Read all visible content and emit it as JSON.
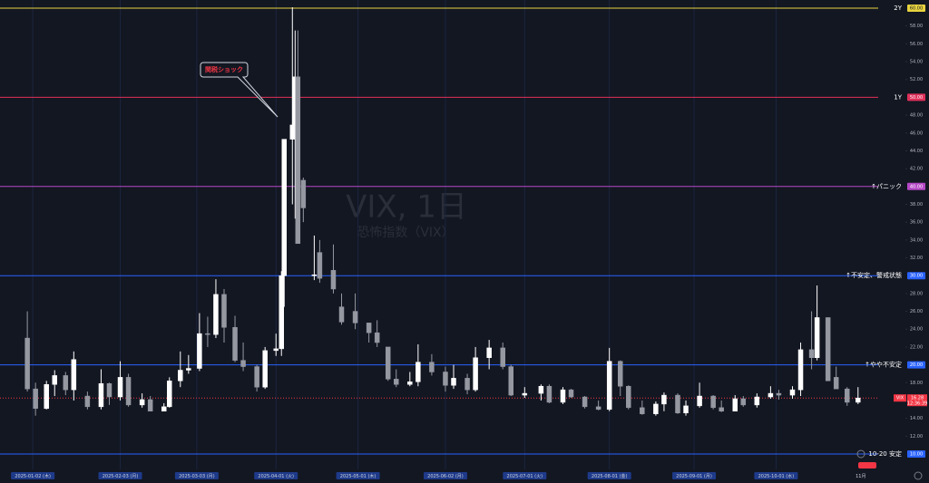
{
  "chart_data": {
    "type": "candlestick",
    "watermark": "VIX, 1日",
    "subtitle": "恐怖指数（VIX）",
    "annotation": "関税ショック",
    "up_color": "#ffffff",
    "down_color": "#9598a1",
    "xlim": [
      "2024-12-21",
      "2025-11-18"
    ],
    "ylim": [
      10,
      60
    ],
    "xticks": [
      {
        "value": "2025-01-02",
        "label": "2025-01-02 (木)"
      },
      {
        "value": "2025-02-03",
        "label": "2025-02-03 (月)"
      },
      {
        "value": "2025-03-03",
        "label": "2025-03-03 (月)"
      },
      {
        "value": "2025-04-01",
        "label": "2025-04-01 (火)"
      },
      {
        "value": "2025-05-01",
        "label": "2025-05-01 (木)"
      },
      {
        "value": "2025-06-02",
        "label": "2025-06-02 (月)"
      },
      {
        "value": "2025-07-01",
        "label": "2025-07-01 (火)"
      },
      {
        "value": "2025-08-01",
        "label": "2025-08-01 (金)"
      },
      {
        "value": "2025-09-01",
        "label": "2025-09-01 (月)"
      },
      {
        "value": "2025-10-01",
        "label": "2025-10-01 (水)"
      },
      {
        "value": "2025-11-01",
        "label": "11月"
      }
    ],
    "yticks": [
      {
        "value": 12,
        "label": "12.00"
      },
      {
        "value": 14,
        "label": "14.00"
      },
      {
        "value": 16,
        "label": "16.00"
      },
      {
        "value": 18,
        "label": "18.00"
      },
      {
        "value": 22,
        "label": "22.00"
      },
      {
        "value": 24,
        "label": "24.00"
      },
      {
        "value": 26,
        "label": "26.00"
      },
      {
        "value": 28,
        "label": "28.00"
      },
      {
        "value": 32,
        "label": "32.00"
      },
      {
        "value": 34,
        "label": "34.00"
      },
      {
        "value": 36,
        "label": "36.00"
      },
      {
        "value": 38,
        "label": "38.00"
      },
      {
        "value": 42,
        "label": "42.00"
      },
      {
        "value": 44,
        "label": "44.00"
      },
      {
        "value": 46,
        "label": "46.00"
      },
      {
        "value": 48,
        "label": "48.00"
      },
      {
        "value": 52,
        "label": "52.00"
      },
      {
        "value": 54,
        "label": "54.00"
      },
      {
        "value": 56,
        "label": "56.00"
      },
      {
        "value": 58,
        "label": "58.00"
      }
    ],
    "levels": [
      {
        "name": "2Y",
        "value": 60,
        "label": "60.00",
        "color": "#e8d33f"
      },
      {
        "name": "1Y",
        "value": 50,
        "label": "50.00",
        "color": "#e0305a"
      },
      {
        "name": "↑パニック",
        "value": 40,
        "label": "40.00",
        "color": "#b548c6"
      },
      {
        "name": "↑不安定、警戒状態",
        "value": 30,
        "label": "30.00",
        "color": "#2962ff"
      },
      {
        "name": "↑やや不安定",
        "value": 20,
        "label": "20.00",
        "color": "#2962ff"
      },
      {
        "name": "10-20 安定",
        "value": 10,
        "label": "10.00",
        "color": "#2962ff"
      }
    ],
    "last_price": {
      "symbol": "VIX",
      "value": 16.28,
      "countdown": "12:36:39",
      "color": "#f23645"
    },
    "x": [
      "2024-12-31",
      "2025-01-03",
      "2025-01-07",
      "2025-01-10",
      "2025-01-14",
      "2025-01-17",
      "2025-01-22",
      "2025-01-27",
      "2025-01-30",
      "2025-02-03",
      "2025-02-06",
      "2025-02-11",
      "2025-02-14",
      "2025-02-19",
      "2025-02-21",
      "2025-02-25",
      "2025-02-28",
      "2025-03-04",
      "2025-03-07",
      "2025-03-10",
      "2025-03-13",
      "2025-03-17",
      "2025-03-20",
      "2025-03-25",
      "2025-03-28",
      "2025-04-01",
      "2025-04-03",
      "2025-04-04",
      "2025-04-07",
      "2025-04-08",
      "2025-04-09",
      "2025-04-11",
      "2025-04-15",
      "2025-04-17",
      "2025-04-22",
      "2025-04-25",
      "2025-04-30",
      "2025-05-05",
      "2025-05-08",
      "2025-05-12",
      "2025-05-15",
      "2025-05-20",
      "2025-05-23",
      "2025-05-28",
      "2025-06-02",
      "2025-06-05",
      "2025-06-10",
      "2025-06-13",
      "2025-06-18",
      "2025-06-23",
      "2025-06-26",
      "2025-07-01",
      "2025-07-07",
      "2025-07-10",
      "2025-07-15",
      "2025-07-18",
      "2025-07-23",
      "2025-07-28",
      "2025-08-01",
      "2025-08-05",
      "2025-08-08",
      "2025-08-13",
      "2025-08-18",
      "2025-08-21",
      "2025-08-26",
      "2025-08-29",
      "2025-09-03",
      "2025-09-08",
      "2025-09-11",
      "2025-09-16",
      "2025-09-19",
      "2025-09-24",
      "2025-09-29",
      "2025-10-02",
      "2025-10-07",
      "2025-10-10",
      "2025-10-14",
      "2025-10-16",
      "2025-10-20",
      "2025-10-23",
      "2025-10-27",
      "2025-10-31"
    ],
    "open": [
      23,
      17.3,
      15.1,
      17.8,
      18.8,
      17.2,
      16.5,
      15.3,
      17.9,
      16.4,
      18.6,
      15.5,
      16.1,
      14.8,
      15.3,
      18.2,
      19.4,
      19.6,
      23.5,
      23.4,
      27.9,
      24.2,
      20.5,
      19.8,
      17.5,
      21.6,
      21.8,
      30,
      45.3,
      46.9,
      52.3,
      40.7,
      30.1,
      32.6,
      30.6,
      26.5,
      26,
      24.7,
      23.6,
      22,
      18.4,
      17.8,
      18.1,
      20.3,
      19.2,
      17.7,
      18.5,
      17.2,
      20.8,
      21.9,
      19.8,
      16.6,
      16.8,
      17.6,
      15.8,
      17.2,
      16.4,
      15.3,
      15,
      20.4,
      17.6,
      15.2,
      14.5,
      15.6,
      16.6,
      14.6,
      15.4,
      16.5,
      15.2,
      14.8,
      16.2,
      15.5,
      16.4,
      16.8,
      16.6,
      17.2,
      21.7,
      20.8,
      25.3,
      18.6,
      17.3,
      15.8
    ],
    "high": [
      26,
      18,
      18.2,
      19.4,
      19.2,
      21.5,
      17,
      19.5,
      18,
      20.4,
      19,
      16.8,
      16.5,
      15.7,
      18.6,
      21.5,
      21.1,
      25.8,
      25.4,
      29.6,
      28.5,
      25.5,
      22.5,
      20,
      22,
      23.5,
      30.5,
      45.3,
      60.1,
      57.5,
      57.5,
      41,
      34.5,
      34,
      33.5,
      28,
      28,
      24.7,
      25,
      22,
      19.5,
      19.2,
      22.3,
      21.2,
      19.8,
      20,
      19,
      22,
      22.8,
      22.5,
      20,
      17.5,
      17.8,
      17.8,
      17.5,
      17.3,
      16.5,
      16,
      21.9,
      20.5,
      17.7,
      16,
      15.9,
      16.9,
      16.8,
      16,
      18,
      16.6,
      16,
      16.6,
      16.5,
      16.8,
      17.6,
      17.2,
      17.6,
      22.5,
      26,
      28.9,
      25.3,
      19.8,
      17.5,
      17.5
    ],
    "low": [
      17,
      14.3,
      15,
      16.5,
      16.6,
      16,
      15,
      15,
      15.5,
      16,
      15.3,
      15.2,
      14.8,
      14.8,
      15.2,
      17.5,
      19,
      19.3,
      22,
      23,
      22.5,
      20.3,
      19.3,
      17,
      17.3,
      21,
      21,
      26.5,
      38,
      36.4,
      33.6,
      36,
      29.5,
      29.2,
      28,
      24.5,
      24,
      22.5,
      22,
      18.2,
      17.5,
      17.6,
      17.6,
      18.8,
      17,
      17.3,
      16.7,
      17,
      19.5,
      19.5,
      16.5,
      16.3,
      16,
      15.7,
      15.6,
      16.3,
      15.1,
      14.9,
      14.8,
      16.5,
      15,
      14.4,
      14.3,
      14.8,
      14.5,
      14.3,
      15.2,
      15,
      14.7,
      14.8,
      15.3,
      15.2,
      16.2,
      16.1,
      16.2,
      16.5,
      19.5,
      20.5,
      18.3,
      17.5,
      15.4,
      15.6
    ],
    "close": [
      17.3,
      15.1,
      17.8,
      18.8,
      17.2,
      20.6,
      15.3,
      17.9,
      16.4,
      18.6,
      15.5,
      16.1,
      14.8,
      15.3,
      18.2,
      19.4,
      19.6,
      23.5,
      23.4,
      27.9,
      24.2,
      20.5,
      19.8,
      17.5,
      21.6,
      21.8,
      30,
      45.3,
      46.9,
      52.3,
      33.6,
      37.6,
      30.1,
      29.7,
      28.5,
      24.8,
      24.7,
      23.6,
      22.5,
      18.4,
      17.8,
      18.1,
      20.3,
      19.2,
      17.7,
      18.5,
      17.2,
      20.8,
      21.9,
      19.8,
      16.6,
      16.8,
      17.6,
      15.8,
      17.2,
      16.4,
      15.3,
      15,
      20.4,
      17.6,
      15.2,
      14.5,
      15.6,
      16.6,
      14.6,
      15.4,
      16.5,
      15.2,
      14.8,
      16.2,
      15.5,
      16.4,
      16.8,
      16.6,
      17.2,
      21.7,
      20.8,
      25.3,
      18.2,
      17.3,
      15.8,
      16.28
    ]
  }
}
